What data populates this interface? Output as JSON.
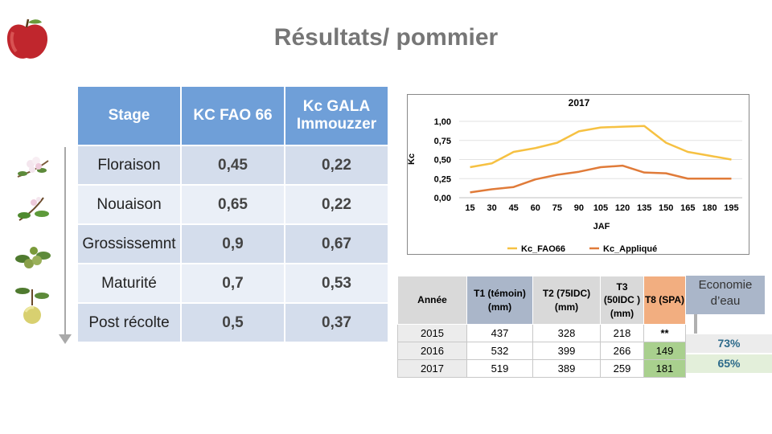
{
  "title": "Résultats/ pommier",
  "stage_table": {
    "headers": [
      "Stage",
      "KC FAO 66",
      "Kc GALA Immouzzer"
    ],
    "rows": [
      {
        "stage": "Floraison",
        "kc_fao": "0,45",
        "kc_gala": "0,22"
      },
      {
        "stage": "Nouaison",
        "kc_fao": "0,65",
        "kc_gala": "0,22"
      },
      {
        "stage": "Grossissemnt",
        "kc_fao": "0,9",
        "kc_gala": "0,67"
      },
      {
        "stage": "Maturité",
        "kc_fao": "0,7",
        "kc_gala": "0,53"
      },
      {
        "stage": "Post récolte",
        "kc_fao": "0,5",
        "kc_gala": "0,37"
      }
    ]
  },
  "chart_data": {
    "type": "line",
    "title": "2017",
    "xlabel": "JAF",
    "ylabel": "Kc",
    "x": [
      15,
      30,
      45,
      60,
      75,
      90,
      105,
      120,
      135,
      150,
      165,
      180,
      195
    ],
    "ylim": [
      0,
      1
    ],
    "yticks": [
      "0,00",
      "0,25",
      "0,50",
      "0,75",
      "1,00"
    ],
    "legend_position": "bottom",
    "grid": true,
    "series": [
      {
        "name": "Kc_FAO66",
        "color": "#f6c142",
        "values": [
          0.4,
          0.45,
          0.6,
          0.65,
          0.72,
          0.87,
          0.92,
          0.93,
          0.94,
          0.72,
          0.6,
          0.55,
          0.5
        ]
      },
      {
        "name": "Kc_Appliqué",
        "color": "#e07b39",
        "values": [
          0.07,
          0.11,
          0.14,
          0.24,
          0.3,
          0.34,
          0.4,
          0.42,
          0.33,
          0.32,
          0.25,
          0.25,
          0.25
        ]
      }
    ]
  },
  "results_table": {
    "headers": [
      "Année",
      "T1 (témoin) (mm)",
      "T2 (75IDC) (mm)",
      "T3 (50IDC ) (mm)",
      "T8 (SPA)"
    ],
    "rows": [
      {
        "annee": "2015",
        "t1": "437",
        "t2": "328",
        "t3": "218",
        "t8": "**"
      },
      {
        "annee": "2016",
        "t1": "532",
        "t2": "399",
        "t3": "266",
        "t8": "149"
      },
      {
        "annee": "2017",
        "t1": "519",
        "t2": "389",
        "t3": "259",
        "t8": "181"
      }
    ]
  },
  "economie": {
    "label": "Economie d’eau",
    "values": [
      "73%",
      "65%"
    ]
  }
}
